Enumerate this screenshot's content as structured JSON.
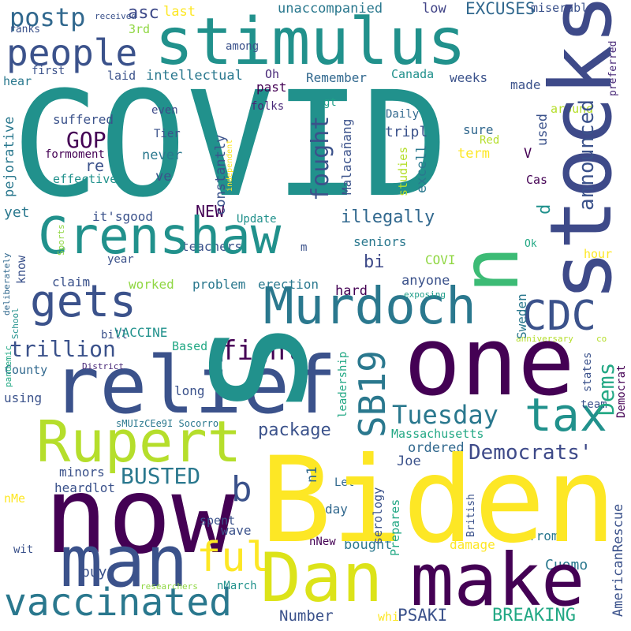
{
  "words": [
    {
      "text": "COVID",
      "color": "#21918c"
    },
    {
      "text": "stimulus",
      "color": "#21918c"
    },
    {
      "text": "people",
      "color": "#3b528b"
    },
    {
      "text": "postp",
      "color": "#31688e"
    },
    {
      "text": "asc",
      "color": "#3e4a89"
    },
    {
      "text": "last",
      "color": "#fde725"
    },
    {
      "text": "unaccompanied",
      "color": "#2a788e"
    },
    {
      "text": "low",
      "color": "#414487"
    },
    {
      "text": "EXCUSES",
      "color": "#31688e"
    },
    {
      "text": "miserabl",
      "color": "#3b528b"
    },
    {
      "text": "received",
      "color": "#3b528b"
    },
    {
      "text": "ranks",
      "color": "#3b528b"
    },
    {
      "text": "3rd",
      "color": "#90d743"
    },
    {
      "text": "among",
      "color": "#3b528b"
    },
    {
      "text": "preferred",
      "color": "#482878"
    },
    {
      "text": "first",
      "color": "#3b528b"
    },
    {
      "text": "hear",
      "color": "#2a788e"
    },
    {
      "text": "laid",
      "color": "#3b528b"
    },
    {
      "text": "intellectual",
      "color": "#2a788e"
    },
    {
      "text": "Oh",
      "color": "#482878"
    },
    {
      "text": "Remember",
      "color": "#31688e"
    },
    {
      "text": "Canada",
      "color": "#21918c"
    },
    {
      "text": "weeks",
      "color": "#3b528b"
    },
    {
      "text": "made",
      "color": "#3b528b"
    },
    {
      "text": "past",
      "color": "#440154"
    },
    {
      "text": "folks",
      "color": "#482878"
    },
    {
      "text": "gt",
      "color": "#1f9e89"
    },
    {
      "text": "around",
      "color": "#b5de2b"
    },
    {
      "text": "even",
      "color": "#3e4a89"
    },
    {
      "text": "Daily",
      "color": "#31688e"
    },
    {
      "text": "suffered",
      "color": "#3b528b"
    },
    {
      "text": "Tier",
      "color": "#3b528b"
    },
    {
      "text": "tripl",
      "color": "#3b528b"
    },
    {
      "text": "sure",
      "color": "#31688e"
    },
    {
      "text": "Red",
      "color": "#b5de2b"
    },
    {
      "text": "GOP",
      "color": "#440154"
    },
    {
      "text": "formoment",
      "color": "#440154"
    },
    {
      "text": "term",
      "color": "#fde725"
    },
    {
      "text": "used",
      "color": "#3b528b"
    },
    {
      "text": "V",
      "color": "#440154"
    },
    {
      "text": "re",
      "color": "#3b528b"
    },
    {
      "text": "never",
      "color": "#2a788e"
    },
    {
      "text": "effective",
      "color": "#21918c"
    },
    {
      "text": "ve",
      "color": "#3b528b"
    },
    {
      "text": "Cas",
      "color": "#440154"
    },
    {
      "text": "NEW",
      "color": "#440154"
    },
    {
      "text": "illegally",
      "color": "#31688e"
    },
    {
      "text": "yet",
      "color": "#2a788e"
    },
    {
      "text": "it'sgood",
      "color": "#3b528b"
    },
    {
      "text": "teachers",
      "color": "#3b528b"
    },
    {
      "text": "Update",
      "color": "#21918c"
    },
    {
      "text": "seniors",
      "color": "#2a788e"
    },
    {
      "text": "Ok",
      "color": "#22a884"
    },
    {
      "text": "hour",
      "color": "#fde725"
    },
    {
      "text": "Crenshaw",
      "color": "#21918c"
    },
    {
      "text": "m",
      "color": "#3b528b"
    },
    {
      "text": "bi",
      "color": "#3e4a89"
    },
    {
      "text": "year",
      "color": "#3b528b"
    },
    {
      "text": "COVI",
      "color": "#90d743"
    },
    {
      "text": "claim",
      "color": "#3b528b"
    },
    {
      "text": "gets",
      "color": "#3b528b"
    },
    {
      "text": "worked",
      "color": "#90d743"
    },
    {
      "text": "problem",
      "color": "#2a788e"
    },
    {
      "text": "erection",
      "color": "#2a788e"
    },
    {
      "text": "anyone",
      "color": "#3b528b"
    },
    {
      "text": "Murdoch",
      "color": "#2a788e"
    },
    {
      "text": "CDC",
      "color": "#3b528b"
    },
    {
      "text": "hard",
      "color": "#440154"
    },
    {
      "text": "exposing",
      "color": "#1f9e89"
    },
    {
      "text": "trillion",
      "color": "#3b528b"
    },
    {
      "text": "bill",
      "color": "#3b528b"
    },
    {
      "text": "VACCINE",
      "color": "#21918c"
    },
    {
      "text": "anniversary",
      "color": "#b5de2b"
    },
    {
      "text": "co",
      "color": "#b5de2b"
    },
    {
      "text": "fight",
      "color": "#440154"
    },
    {
      "text": "Based",
      "color": "#22a884"
    },
    {
      "text": "County",
      "color": "#31688e"
    },
    {
      "text": "relief",
      "color": "#3b528b"
    },
    {
      "text": "District",
      "color": "#482878"
    },
    {
      "text": "long",
      "color": "#3b528b"
    },
    {
      "text": "one",
      "color": "#440154"
    },
    {
      "text": "using",
      "color": "#3b528b"
    },
    {
      "text": "tax",
      "color": "#21918c"
    },
    {
      "text": "Tuesday",
      "color": "#2a788e"
    },
    {
      "text": "team",
      "color": "#3b528b"
    },
    {
      "text": "sMUIzCEe9I Socorro",
      "color": "#2a788e"
    },
    {
      "text": "package",
      "color": "#3b528b"
    },
    {
      "text": "Rupert",
      "color": "#b5de2b"
    },
    {
      "text": "Democrats'",
      "color": "#3e4a89"
    },
    {
      "text": "Massachusetts",
      "color": "#22a884"
    },
    {
      "text": "ordered",
      "color": "#31688e"
    },
    {
      "text": "Joe",
      "color": "#3b528b"
    },
    {
      "text": "BUSTED",
      "color": "#2a788e"
    },
    {
      "text": "minors",
      "color": "#3b528b"
    },
    {
      "text": "heardlot",
      "color": "#3b528b"
    },
    {
      "text": "day",
      "color": "#31688e"
    },
    {
      "text": "b",
      "color": "#3b528b"
    },
    {
      "text": "Let",
      "color": "#31688e"
    },
    {
      "text": "now",
      "color": "#440154"
    },
    {
      "text": "spent",
      "color": "#3b528b"
    },
    {
      "text": "wave",
      "color": "#3b528b"
    },
    {
      "text": "ful",
      "color": "#fde725"
    },
    {
      "text": "from3",
      "color": "#2a788e"
    },
    {
      "text": "bought",
      "color": "#2a788e"
    },
    {
      "text": "damage",
      "color": "#fde725"
    },
    {
      "text": "nNew",
      "color": "#440154"
    },
    {
      "text": "Cuomo",
      "color": "#2a788e"
    },
    {
      "text": "wit",
      "color": "#3b528b"
    },
    {
      "text": "buy",
      "color": "#3b528b"
    },
    {
      "text": "man",
      "color": "#3b528b"
    },
    {
      "text": "Dan",
      "color": "#dce319"
    },
    {
      "text": "make",
      "color": "#440154"
    },
    {
      "text": "researchers",
      "color": "#90d743"
    },
    {
      "text": "nMarch",
      "color": "#21918c"
    },
    {
      "text": "vaccinated",
      "color": "#2a788e"
    },
    {
      "text": "Number",
      "color": "#3b528b"
    },
    {
      "text": "whi",
      "color": "#fde725"
    },
    {
      "text": "PSAKI",
      "color": "#3b528b"
    },
    {
      "text": "BREAKING",
      "color": "#22a884"
    },
    {
      "text": "nMe",
      "color": "#fde725"
    },
    {
      "text": "Biden",
      "color": "#fde725"
    },
    {
      "text": "stocks",
      "color": "#3e4a89"
    },
    {
      "text": "s",
      "color": "#21918c"
    },
    {
      "text": "n",
      "color": "#3cbb75"
    },
    {
      "text": "announced",
      "color": "#3b528b"
    },
    {
      "text": "fought",
      "color": "#3b528b"
    },
    {
      "text": "SB19",
      "color": "#2a788e"
    },
    {
      "text": "Dems",
      "color": "#22a884"
    },
    {
      "text": "d",
      "color": "#21918c"
    },
    {
      "text": "constantly",
      "color": "#3b528b"
    },
    {
      "text": "Malacañang",
      "color": "#3b528b"
    },
    {
      "text": "studies",
      "color": "#b5de2b"
    },
    {
      "text": "excell",
      "color": "#2a788e"
    },
    {
      "text": "pejorative",
      "color": "#2a788e"
    },
    {
      "text": "independent",
      "color": "#fde725"
    },
    {
      "text": "know",
      "color": "#3b528b"
    },
    {
      "text": "Sports",
      "color": "#90d743"
    },
    {
      "text": "deliberately",
      "color": "#31688e"
    },
    {
      "text": "School",
      "color": "#21918c"
    },
    {
      "text": "pandemic",
      "color": "#22a884"
    },
    {
      "text": "leadership",
      "color": "#22a884"
    },
    {
      "text": "states",
      "color": "#3b528b"
    },
    {
      "text": "Democrat",
      "color": "#440154"
    },
    {
      "text": "Sweden",
      "color": "#2a788e"
    },
    {
      "text": "n1",
      "color": "#31688e"
    },
    {
      "text": "serology",
      "color": "#3b528b"
    },
    {
      "text": "Prepares",
      "color": "#22a884"
    },
    {
      "text": "British",
      "color": "#3b528b"
    },
    {
      "text": "AmericanRescue",
      "color": "#3b528b"
    }
  ]
}
